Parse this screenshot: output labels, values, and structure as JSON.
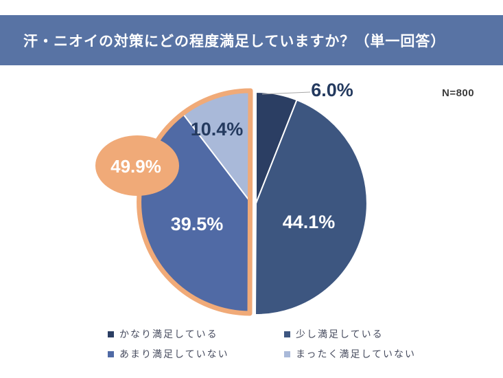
{
  "header": {
    "title": "汗・ニオイの対策にどの程度満足していますか？（単一回答）"
  },
  "sample_size": "N=800",
  "colors": {
    "background": "#ffffff",
    "banner_bg": "#5873a4",
    "banner_text": "#ffffff",
    "dark_label": "#243a5f",
    "legend_text": "#464b5e",
    "sample_text": "#3c3c3c",
    "leader_line": "#a6a6a6",
    "slice_divider": "#ffffff"
  },
  "chart_data": {
    "type": "pie",
    "title": "汗・ニオイの対策にどの程度満足していますか？（単一回答）",
    "sample_size": "N=800",
    "start": "top, clockwise",
    "legend_position": "bottom",
    "legend_columns": 2,
    "slices": [
      {
        "label": "かなり満足している",
        "value": 6.0,
        "display": "6.0%",
        "color": "#2b3e63",
        "label_placement": "outside-with-leader"
      },
      {
        "label": "少し満足している",
        "value": 44.1,
        "display": "44.1%",
        "color": "#3d5680",
        "label_placement": "inside"
      },
      {
        "label": "あまり満足していない",
        "value": 39.5,
        "display": "39.5%",
        "color": "#506aa5",
        "label_placement": "inside"
      },
      {
        "label": "まったく満足していない",
        "value": 10.4,
        "display": "10.4%",
        "color": "#a9b9d9",
        "label_placement": "inside"
      }
    ],
    "highlight": {
      "display": "49.9%",
      "meaning": "あまり満足していない + まったく満足していない の合計",
      "slices": [
        "あまり満足していない",
        "まったく満足していない"
      ],
      "color": "#f0aa78",
      "text_color": "#ffffff",
      "style": "peach ellipse callout + peach outline around left (dissatisfied) half"
    }
  }
}
